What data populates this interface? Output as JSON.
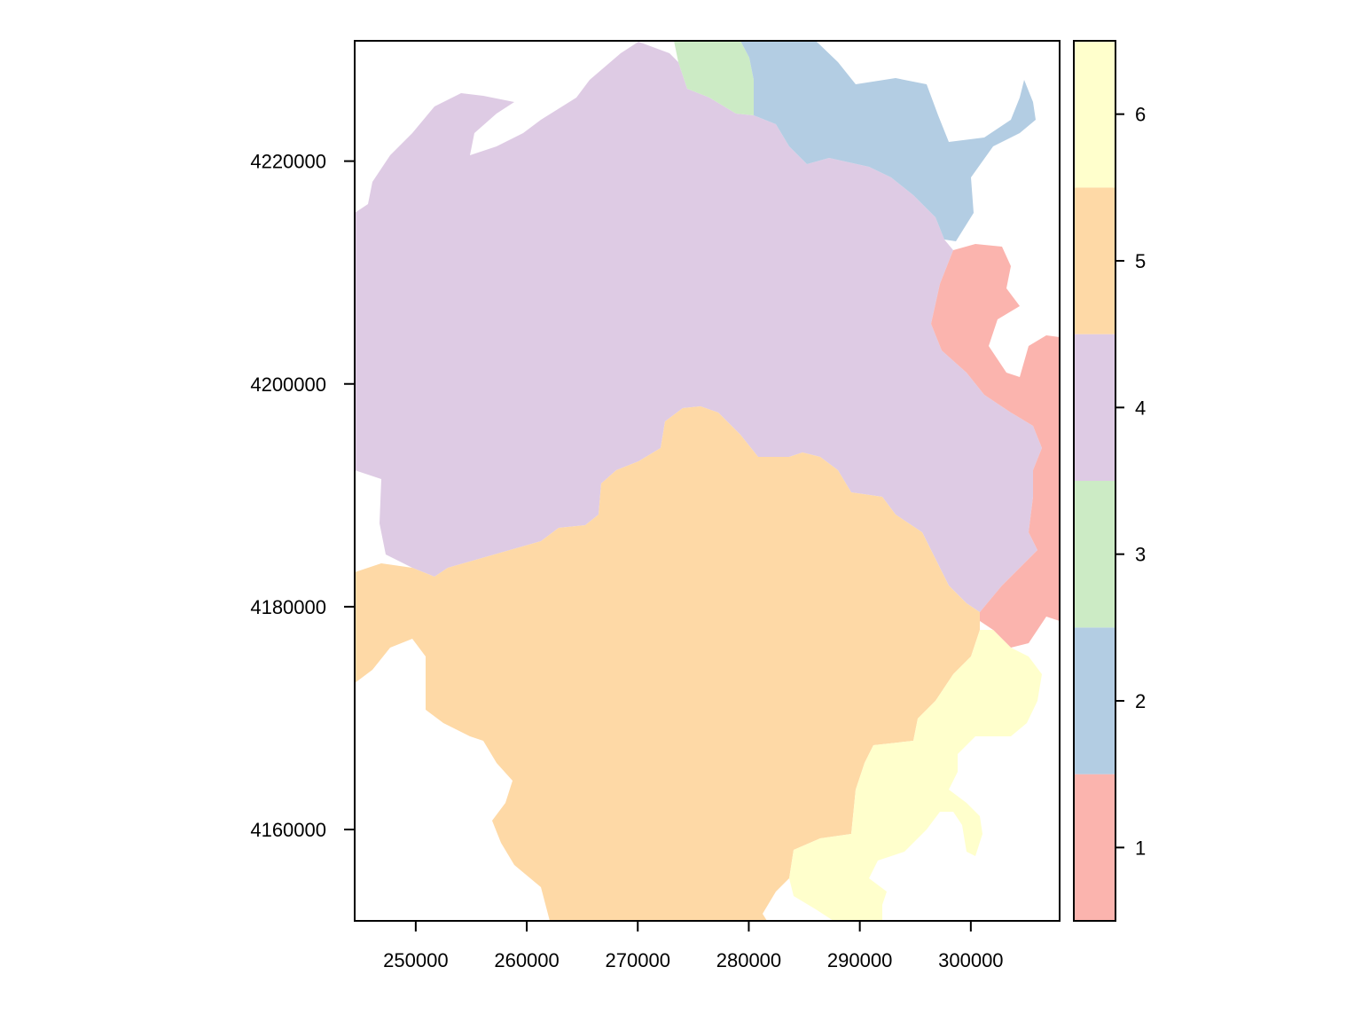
{
  "map": {
    "x_axis": {
      "ticks": [
        250000,
        260000,
        270000,
        280000,
        290000,
        300000
      ],
      "tick_labels": [
        "250000",
        "260000",
        "270000",
        "280000",
        "290000",
        "300000"
      ],
      "range": [
        244500,
        308000
      ]
    },
    "y_axis": {
      "ticks": [
        4220000,
        4200000,
        4180000,
        4160000
      ],
      "tick_labels": [
        "4220000",
        "4200000",
        "4180000",
        "4160000"
      ],
      "range": [
        4151800,
        4230800
      ]
    },
    "regions": [
      {
        "class": 1,
        "color": "#FBB4AE"
      },
      {
        "class": 2,
        "color": "#B3CDE3"
      },
      {
        "class": 3,
        "color": "#CCEBC5"
      },
      {
        "class": 4,
        "color": "#DECBE4"
      },
      {
        "class": 5,
        "color": "#FED9A6"
      },
      {
        "class": 6,
        "color": "#FFFFCC"
      }
    ]
  },
  "legend": {
    "items": [
      {
        "label": "1",
        "color": "#FBB4AE"
      },
      {
        "label": "2",
        "color": "#B3CDE3"
      },
      {
        "label": "3",
        "color": "#CCEBC5"
      },
      {
        "label": "4",
        "color": "#DECBE4"
      },
      {
        "label": "5",
        "color": "#FED9A6"
      },
      {
        "label": "6",
        "color": "#FFFFCC"
      }
    ]
  }
}
